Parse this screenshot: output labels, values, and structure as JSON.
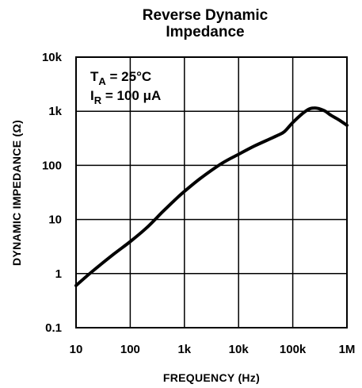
{
  "chart_data": {
    "type": "line",
    "title_line1": "Reverse Dynamic",
    "title_line2": "Impedance",
    "xlabel": "FREQUENCY (Hz)",
    "ylabel": "DYNAMIC IMPEDANCE (Ω)",
    "x_scale": "log",
    "y_scale": "log",
    "xlim": [
      10,
      1000000
    ],
    "ylim": [
      0.1,
      10000
    ],
    "grid": true,
    "x_ticks": [
      10,
      100,
      1000,
      10000,
      100000,
      1000000
    ],
    "x_tick_labels": [
      "10",
      "100",
      "1k",
      "10k",
      "100k",
      "1M"
    ],
    "y_ticks": [
      0.1,
      1,
      10,
      100,
      1000,
      10000
    ],
    "y_tick_labels": [
      "0.1",
      "1",
      "10",
      "100",
      "1k",
      "10k"
    ],
    "annotations": [
      {
        "main": "T",
        "sub": "A",
        "rest": " = 25°C"
      },
      {
        "main": "I",
        "sub": "R",
        "rest": " = 100 μA"
      }
    ],
    "series": [
      {
        "x": [
          10,
          20,
          50,
          100,
          200,
          400,
          700,
          1000,
          2000,
          5000,
          10000,
          20000,
          50000,
          70000,
          100000,
          150000,
          200000,
          250000,
          300000,
          400000,
          500000,
          700000,
          1000000
        ],
        "y": [
          0.6,
          1.1,
          2.3,
          3.9,
          7.0,
          14.0,
          24.0,
          33.0,
          58.0,
          110.0,
          160.0,
          230.0,
          350.0,
          420.0,
          620.0,
          900.0,
          1100.0,
          1150.0,
          1120.0,
          1000.0,
          850.0,
          700.0,
          550.0
        ]
      }
    ]
  }
}
